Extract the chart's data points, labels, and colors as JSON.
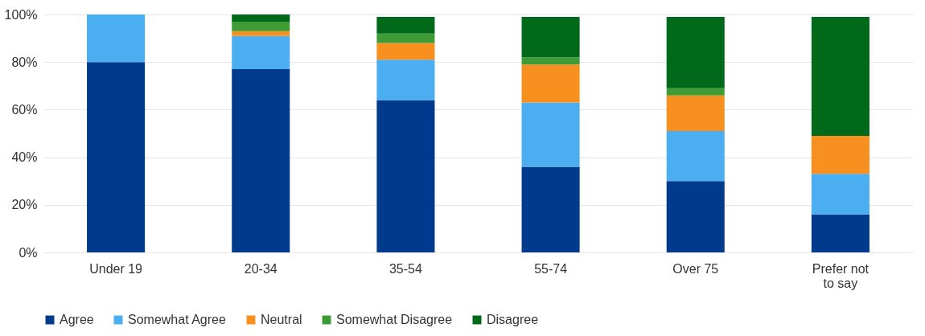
{
  "chart_data": {
    "type": "bar",
    "stacked": true,
    "categories": [
      "Under 19",
      "20-34",
      "35-54",
      "55-74",
      "Over 75",
      "Prefer not to say"
    ],
    "ylim": [
      0,
      100
    ],
    "yticks": [
      {
        "value": 0,
        "label": "0%"
      },
      {
        "value": 20,
        "label": "20%"
      },
      {
        "value": 40,
        "label": "40%"
      },
      {
        "value": 60,
        "label": "60%"
      },
      {
        "value": 80,
        "label": "80%"
      },
      {
        "value": 100,
        "label": "100%"
      }
    ],
    "grid": "y",
    "legend": "bottom",
    "series": [
      {
        "name": "Agree",
        "color": "#003a8c",
        "values": [
          80,
          77,
          64,
          36,
          30,
          16
        ]
      },
      {
        "name": "Somewhat Agree",
        "color": "#4aaef0",
        "values": [
          20,
          14,
          17,
          27,
          21,
          17
        ]
      },
      {
        "name": "Neutral",
        "color": "#f7901e",
        "values": [
          0,
          2,
          7,
          16,
          15,
          16
        ]
      },
      {
        "name": "Somewhat Disagree",
        "color": "#3f9c35",
        "values": [
          0,
          4,
          4,
          3,
          3,
          0
        ]
      },
      {
        "name": "Disagree",
        "color": "#006a1a",
        "values": [
          0,
          3,
          7,
          17,
          30,
          50
        ]
      }
    ]
  }
}
